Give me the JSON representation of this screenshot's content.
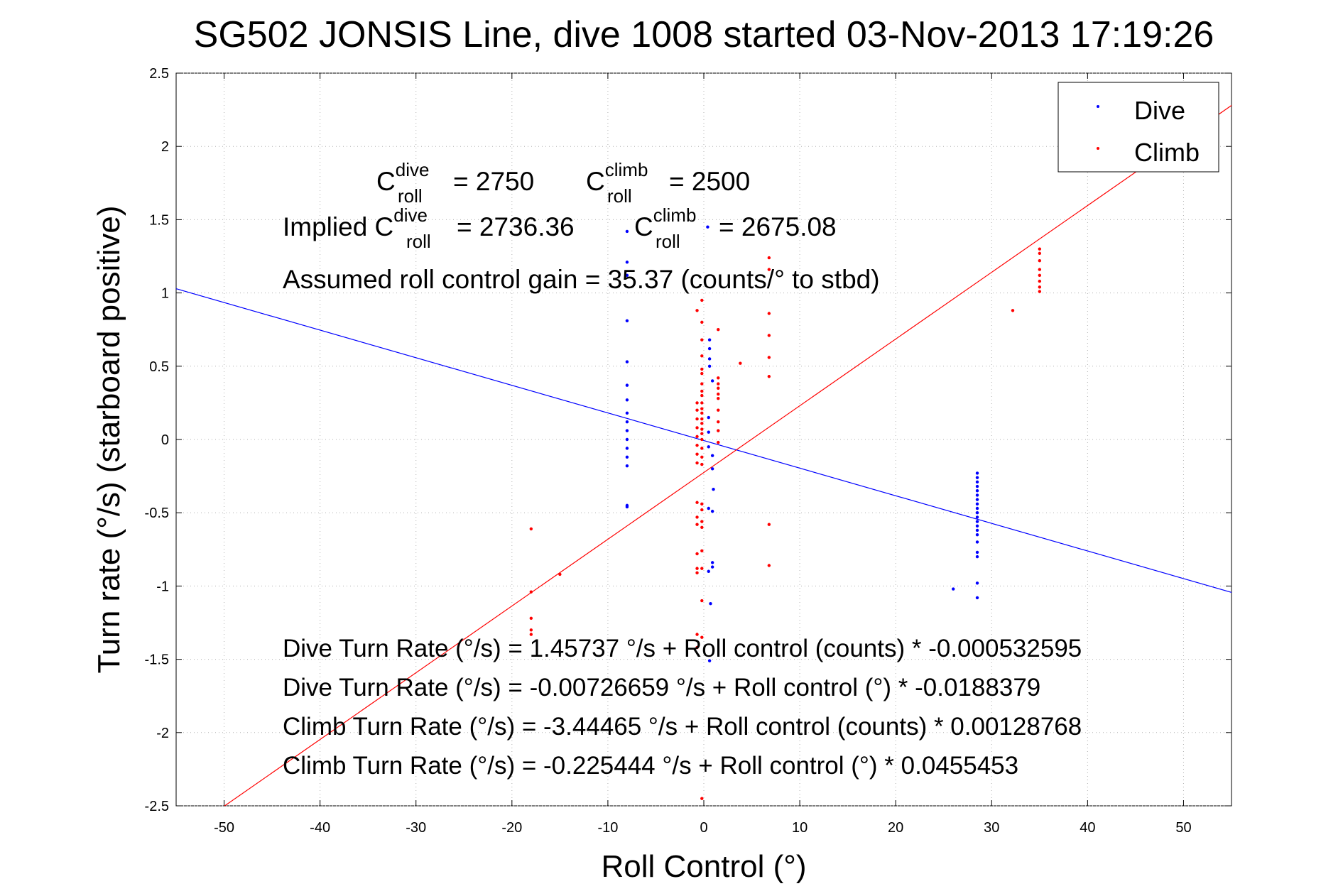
{
  "chart_data": {
    "type": "scatter",
    "title": "SG502 JONSIS Line, dive 1008 started 03-Nov-2013 17:19:26",
    "xlabel": "Roll Control (°)",
    "ylabel": "Turn rate (°/s) (starboard positive)",
    "xlim": [
      -55,
      55
    ],
    "ylim": [
      -2.5,
      2.5
    ],
    "x_ticks": [
      "-50",
      "-40",
      "-30",
      "-20",
      "-10",
      "0",
      "10",
      "20",
      "30",
      "40",
      "50"
    ],
    "y_ticks": [
      "2.5",
      "2",
      "1.5",
      "1",
      "0.5",
      "0",
      "-0.5",
      "-1",
      "-1.5",
      "-2",
      "-2.5"
    ],
    "grid": true,
    "legend_position": "top-right",
    "colors": {
      "dive": "#0000ff",
      "climb": "#ff0000"
    },
    "series": [
      {
        "name": "Dive",
        "color": "#0000ff",
        "points": [
          [
            -8,
            1.42
          ],
          [
            -8,
            1.21
          ],
          [
            -8,
            1.12
          ],
          [
            -8,
            0.81
          ],
          [
            -8,
            0.53
          ],
          [
            -8,
            0.37
          ],
          [
            -8,
            0.27
          ],
          [
            -8,
            0.18
          ],
          [
            -8,
            0.12
          ],
          [
            -8,
            0.06
          ],
          [
            -8,
            0.0
          ],
          [
            -8,
            -0.06
          ],
          [
            -8,
            -0.12
          ],
          [
            -8,
            -0.18
          ],
          [
            -8,
            -0.45
          ],
          [
            -8,
            -0.46
          ],
          [
            0.4,
            1.45
          ],
          [
            0.6,
            0.68
          ],
          [
            0.6,
            0.62
          ],
          [
            0.6,
            0.55
          ],
          [
            0.6,
            0.5
          ],
          [
            0.9,
            0.4
          ],
          [
            0.5,
            0.15
          ],
          [
            0.5,
            0.05
          ],
          [
            0.5,
            -0.05
          ],
          [
            0.9,
            -0.11
          ],
          [
            0.9,
            -0.2
          ],
          [
            1.0,
            -0.34
          ],
          [
            0.5,
            -0.47
          ],
          [
            0.9,
            -0.49
          ],
          [
            0.9,
            -0.84
          ],
          [
            0.9,
            -0.87
          ],
          [
            0.5,
            -0.9
          ],
          [
            0.7,
            -1.12
          ],
          [
            0.6,
            -1.51
          ],
          [
            28.5,
            -0.23
          ],
          [
            28.5,
            -0.26
          ],
          [
            28.5,
            -0.29
          ],
          [
            28.5,
            -0.32
          ],
          [
            28.5,
            -0.35
          ],
          [
            28.5,
            -0.38
          ],
          [
            28.5,
            -0.41
          ],
          [
            28.5,
            -0.44
          ],
          [
            28.5,
            -0.47
          ],
          [
            28.5,
            -0.5
          ],
          [
            28.5,
            -0.53
          ],
          [
            28.5,
            -0.56
          ],
          [
            28.5,
            -0.59
          ],
          [
            28.5,
            -0.62
          ],
          [
            28.5,
            -0.65
          ],
          [
            28.5,
            -0.7
          ],
          [
            28.5,
            -0.77
          ],
          [
            28.5,
            -0.8
          ],
          [
            28.5,
            -0.98
          ],
          [
            28.5,
            -1.08
          ],
          [
            26,
            -1.02
          ]
        ]
      },
      {
        "name": "Climb",
        "color": "#ff0000",
        "points": [
          [
            -18,
            -0.61
          ],
          [
            -18,
            -1.04
          ],
          [
            -18,
            -1.22
          ],
          [
            -18,
            -1.3
          ],
          [
            -18,
            -1.33
          ],
          [
            -15,
            -0.92
          ],
          [
            -0.7,
            0.88
          ],
          [
            -0.7,
            0.25
          ],
          [
            -0.7,
            0.2
          ],
          [
            -0.7,
            0.14
          ],
          [
            -0.7,
            0.08
          ],
          [
            -0.7,
            0.02
          ],
          [
            -0.7,
            -0.04
          ],
          [
            -0.7,
            -0.1
          ],
          [
            -0.7,
            -0.16
          ],
          [
            -0.7,
            -0.43
          ],
          [
            -0.7,
            -0.53
          ],
          [
            -0.7,
            -0.58
          ],
          [
            -0.7,
            -0.78
          ],
          [
            -0.7,
            -0.88
          ],
          [
            -0.7,
            -0.91
          ],
          [
            -0.7,
            -1.33
          ],
          [
            -0.7,
            -1.42
          ],
          [
            -0.2,
            0.95
          ],
          [
            -0.2,
            0.8
          ],
          [
            -0.2,
            0.68
          ],
          [
            -0.2,
            0.57
          ],
          [
            -0.2,
            0.48
          ],
          [
            -0.2,
            0.45
          ],
          [
            -0.2,
            0.38
          ],
          [
            -0.2,
            0.33
          ],
          [
            -0.2,
            0.3
          ],
          [
            -0.2,
            0.25
          ],
          [
            -0.2,
            0.21
          ],
          [
            -0.2,
            0.18
          ],
          [
            -0.2,
            0.14
          ],
          [
            -0.2,
            0.11
          ],
          [
            -0.2,
            0.07
          ],
          [
            -0.2,
            0.04
          ],
          [
            -0.2,
            0.0
          ],
          [
            -0.2,
            -0.06
          ],
          [
            -0.2,
            -0.12
          ],
          [
            -0.2,
            -0.17
          ],
          [
            -0.2,
            -0.44
          ],
          [
            -0.2,
            -0.48
          ],
          [
            -0.2,
            -0.56
          ],
          [
            -0.2,
            -0.6
          ],
          [
            -0.2,
            -0.76
          ],
          [
            -0.2,
            -0.88
          ],
          [
            -0.2,
            -1.1
          ],
          [
            -0.2,
            -1.35
          ],
          [
            -0.2,
            -2.45
          ],
          [
            1.5,
            0.75
          ],
          [
            1.5,
            0.42
          ],
          [
            1.5,
            0.38
          ],
          [
            1.5,
            0.35
          ],
          [
            1.5,
            0.31
          ],
          [
            1.5,
            0.28
          ],
          [
            1.5,
            0.2
          ],
          [
            1.5,
            0.12
          ],
          [
            1.5,
            0.06
          ],
          [
            1.5,
            -0.02
          ],
          [
            3.8,
            0.52
          ],
          [
            6.8,
            1.24
          ],
          [
            6.8,
            1.16
          ],
          [
            6.8,
            0.86
          ],
          [
            6.8,
            0.71
          ],
          [
            6.8,
            0.56
          ],
          [
            6.8,
            0.43
          ],
          [
            6.8,
            -0.58
          ],
          [
            6.8,
            -0.86
          ],
          [
            32.2,
            0.88
          ],
          [
            35,
            1.3
          ],
          [
            35,
            1.27
          ],
          [
            35,
            1.22
          ],
          [
            35,
            1.16
          ],
          [
            35,
            1.12
          ],
          [
            35,
            1.08
          ],
          [
            35,
            1.04
          ],
          [
            35,
            1.01
          ]
        ]
      }
    ],
    "fit_lines": [
      {
        "name": "Dive",
        "color": "#0000ff",
        "intercept": -0.00726659,
        "slope": -0.0188379
      },
      {
        "name": "Climb",
        "color": "#ff0000",
        "intercept": -0.225444,
        "slope": 0.0455453
      }
    ],
    "annotations": {
      "c_roll_dive": {
        "base": "C",
        "sup": "dive",
        "sub": "roll",
        "value": "= 2750"
      },
      "c_roll_climb": {
        "base": "C",
        "sup": "climb",
        "sub": "roll",
        "value": "= 2500"
      },
      "implied_prefix": "Implied C",
      "implied_dive": {
        "sup": "dive",
        "sub": "roll",
        "value": "= 2736.36"
      },
      "implied_climb": {
        "base": "C",
        "sup": "climb",
        "sub": "roll",
        "value": "= 2675.08"
      },
      "gain": "Assumed roll control gain = 35.37 (counts/° to stbd)",
      "equations": [
        "Dive Turn Rate (°/s) = 1.45737 °/s + Roll control (counts) * -0.000532595",
        "Dive Turn Rate (°/s) = -0.00726659 °/s + Roll control (°) * -0.0188379",
        "Climb Turn Rate (°/s) = -3.44465 °/s + Roll control (counts) * 0.00128768",
        "Climb Turn Rate (°/s) = -0.225444 °/s + Roll control (°) * 0.0455453"
      ]
    }
  }
}
